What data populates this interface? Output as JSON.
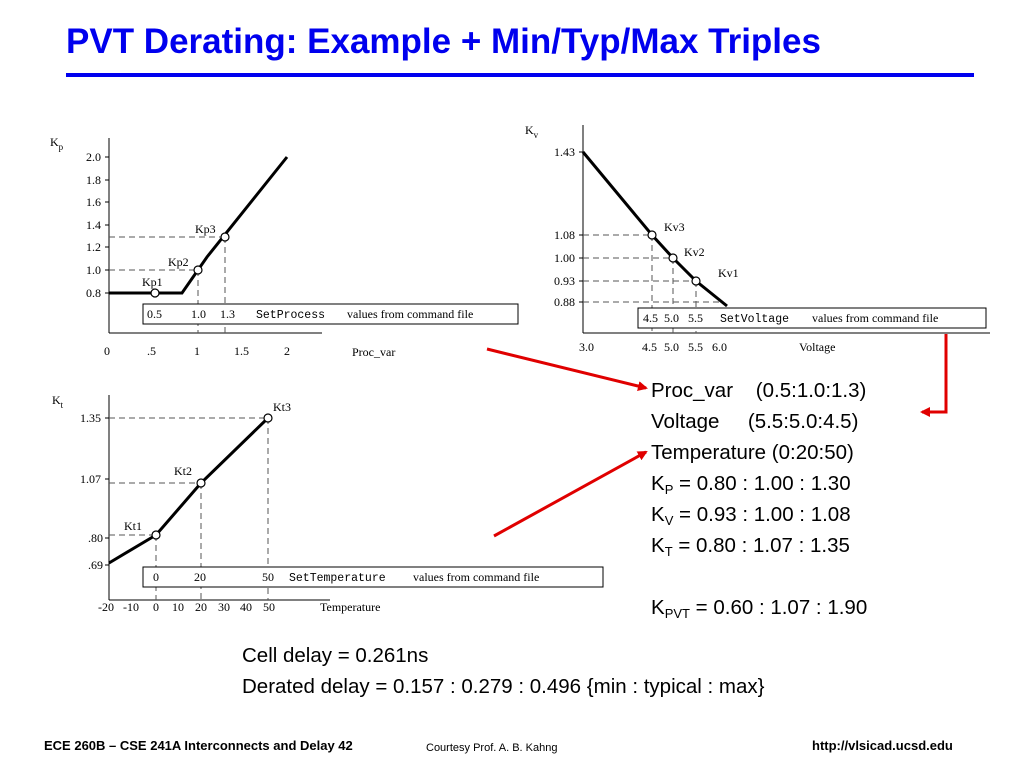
{
  "slide": {
    "title": "PVT Derating:  Example + Min/Typ/Max Triples"
  },
  "charts": {
    "process": {
      "ylabel_main": "K",
      "ylabel_sub": "p",
      "yticks": [
        "2.0",
        "1.8",
        "1.6",
        "1.4",
        "1.2",
        "1.0",
        "0.8"
      ],
      "xticks": [
        "0",
        ".5",
        "1",
        "1.5",
        "2"
      ],
      "xlabel": "Proc_var",
      "points": [
        "Kp1",
        "Kp2",
        "Kp3"
      ],
      "strip_values": [
        "0.5",
        "1.0",
        "1.3"
      ],
      "strip_cmd": "SetProcess",
      "strip_text": "values from command file"
    },
    "voltage": {
      "ylabel_main": "K",
      "ylabel_sub": "v",
      "yticks": [
        "1.43",
        "1.08",
        "1.00",
        "0.93",
        "0.88"
      ],
      "xticks": [
        "3.0",
        "4.5",
        "5.0",
        "5.5",
        "6.0"
      ],
      "xlabel": "Voltage",
      "points": [
        "Kv3",
        "Kv2",
        "Kv1"
      ],
      "strip_values": [
        "4.5",
        "5.0",
        "5.5"
      ],
      "strip_cmd": "SetVoltage",
      "strip_text": "values from command file"
    },
    "temperature": {
      "ylabel_main": "K",
      "ylabel_sub": "t",
      "yticks": [
        "1.35",
        "1.07",
        ".80",
        ".69"
      ],
      "xticks": [
        "-20",
        "-10",
        "0",
        "10",
        "20",
        "30",
        "40",
        "50"
      ],
      "xlabel": "Temperature",
      "points": [
        "Kt1",
        "Kt2",
        "Kt3"
      ],
      "strip_values": [
        "0",
        "20",
        "50"
      ],
      "strip_cmd": "SetTemperature",
      "strip_text": "values from command file"
    }
  },
  "arrows": {
    "color": "#e00000"
  },
  "results": {
    "proc_var": "Proc_var    (0.5:1.0:1.3)",
    "voltage": "Voltage     (5.5:5.0:4.5)",
    "temperature": "Temperature (0:20:50)",
    "kp_main": "K",
    "kp_sub": "P",
    "kp_values": " = 0.80 : 1.00 : 1.30",
    "kv_main": "K",
    "kv_sub": "V",
    "kv_values": " = 0.93 : 1.00 : 1.08",
    "kt_main": "K",
    "kt_sub": "T",
    "kt_values": " = 0.80 : 1.07 : 1.35",
    "kpvt_main": "K",
    "kpvt_sub": "PVT",
    "kpvt_values": " = 0.60 : 1.07 : 1.90"
  },
  "delays": {
    "cell": "Cell delay = 0.261ns",
    "derated": "Derated delay = 0.157 : 0.279 : 0.496 {min : typical : max}"
  },
  "footer": {
    "left": "ECE 260B – CSE 241A Interconnects and Delay 42",
    "middle": "Courtesy Prof. A. B. Kahng",
    "right": "http://vlsicad.ucsd.edu"
  }
}
